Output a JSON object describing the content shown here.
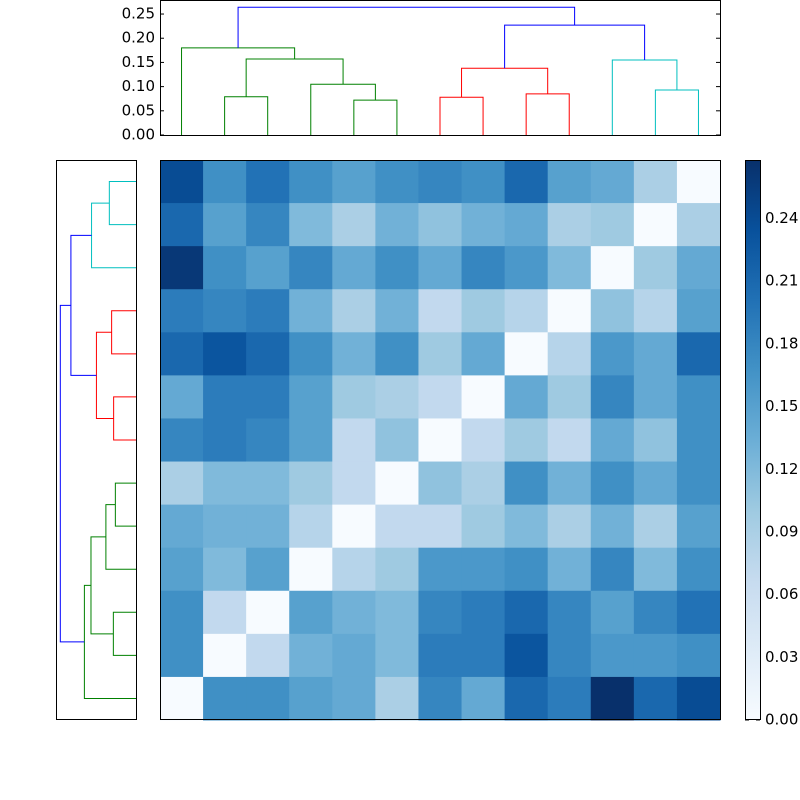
{
  "chart_data": {
    "type": "clustered-heatmap",
    "colormap": "Blues",
    "clim": [
      0,
      0.268
    ],
    "cticks": [
      {
        "value": 0,
        "label": "0.00"
      },
      0.03,
      0.06,
      0.09,
      0.12,
      0.15,
      0.18,
      0.21,
      0.24
    ],
    "matrix": [
      [
        0.24,
        0.17,
        0.2,
        0.17,
        0.15,
        0.17,
        0.18,
        0.17,
        0.21,
        0.15,
        0.14,
        0.09,
        0
      ],
      [
        0.21,
        0.15,
        0.18,
        0.12,
        0.09,
        0.13,
        0.11,
        0.13,
        0.14,
        0.09,
        0.1,
        0,
        0.09
      ],
      [
        0.26,
        0.17,
        0.15,
        0.18,
        0.14,
        0.17,
        0.14,
        0.18,
        0.16,
        0.12,
        0,
        0.1,
        0.14
      ],
      [
        0.19,
        0.18,
        0.19,
        0.13,
        0.09,
        0.13,
        0.07,
        0.1,
        0.08,
        0,
        0.11,
        0.08,
        0.15
      ],
      [
        0.21,
        0.23,
        0.21,
        0.17,
        0.13,
        0.17,
        0.1,
        0.14,
        0,
        0.08,
        0.16,
        0.14,
        0.21
      ],
      [
        0.14,
        0.19,
        0.19,
        0.15,
        0.1,
        0.09,
        0.07,
        0,
        0.14,
        0.1,
        0.18,
        0.14,
        0.17
      ],
      [
        0.18,
        0.19,
        0.18,
        0.15,
        0.07,
        0.11,
        0,
        0.07,
        0.1,
        0.07,
        0.14,
        0.11,
        0.17
      ],
      [
        0.09,
        0.12,
        0.12,
        0.1,
        0.07,
        0,
        0.11,
        0.09,
        0.17,
        0.13,
        0.17,
        0.14,
        0.17
      ],
      [
        0.14,
        0.13,
        0.13,
        0.08,
        0,
        0.07,
        0.07,
        0.1,
        0.12,
        0.09,
        0.13,
        0.09,
        0.15
      ],
      [
        0.15,
        0.12,
        0.15,
        0,
        0.08,
        0.1,
        0.16,
        0.16,
        0.17,
        0.13,
        0.18,
        0.12,
        0.17
      ],
      [
        0.17,
        0.07,
        0,
        0.15,
        0.13,
        0.12,
        0.18,
        0.19,
        0.21,
        0.18,
        0.15,
        0.18,
        0.2
      ],
      [
        0.17,
        0,
        0.07,
        0.13,
        0.14,
        0.12,
        0.19,
        0.19,
        0.23,
        0.18,
        0.16,
        0.16,
        0.17
      ],
      [
        0,
        0.17,
        0.17,
        0.15,
        0.14,
        0.09,
        0.18,
        0.14,
        0.21,
        0.19,
        0.27,
        0.21,
        0.24
      ]
    ],
    "dendrogram": {
      "ylim": [
        0,
        0.279
      ],
      "yticks": [
        {
          "value": 0,
          "label": "0.00"
        },
        0.05,
        {
          "value": 0.1,
          "label": "0.10"
        },
        0.15,
        {
          "value": 0.2,
          "label": "0.20"
        },
        0.25
      ],
      "links": [
        {
          "children": [
            1,
            2
          ],
          "height": 0.079,
          "color": "#008000"
        },
        {
          "children": [
            4,
            5
          ],
          "height": 0.072,
          "color": "#008000"
        },
        {
          "children": [
            3,
            14
          ],
          "height": 0.105,
          "color": "#008000"
        },
        {
          "children": [
            13,
            15
          ],
          "height": 0.157,
          "color": "#008000"
        },
        {
          "children": [
            0,
            16
          ],
          "height": 0.18,
          "color": "#008000"
        },
        {
          "children": [
            6,
            7
          ],
          "height": 0.078,
          "color": "#ff0000"
        },
        {
          "children": [
            8,
            9
          ],
          "height": 0.085,
          "color": "#ff0000"
        },
        {
          "children": [
            18,
            19
          ],
          "height": 0.138,
          "color": "#ff0000"
        },
        {
          "children": [
            11,
            12
          ],
          "height": 0.093,
          "color": "#00bfbf"
        },
        {
          "children": [
            10,
            21
          ],
          "height": 0.155,
          "color": "#00bfbf"
        },
        {
          "children": [
            20,
            22
          ],
          "height": 0.227,
          "color": "#0000ff"
        },
        {
          "children": [
            17,
            23
          ],
          "height": 0.264,
          "color": "#0000ff"
        }
      ]
    }
  }
}
